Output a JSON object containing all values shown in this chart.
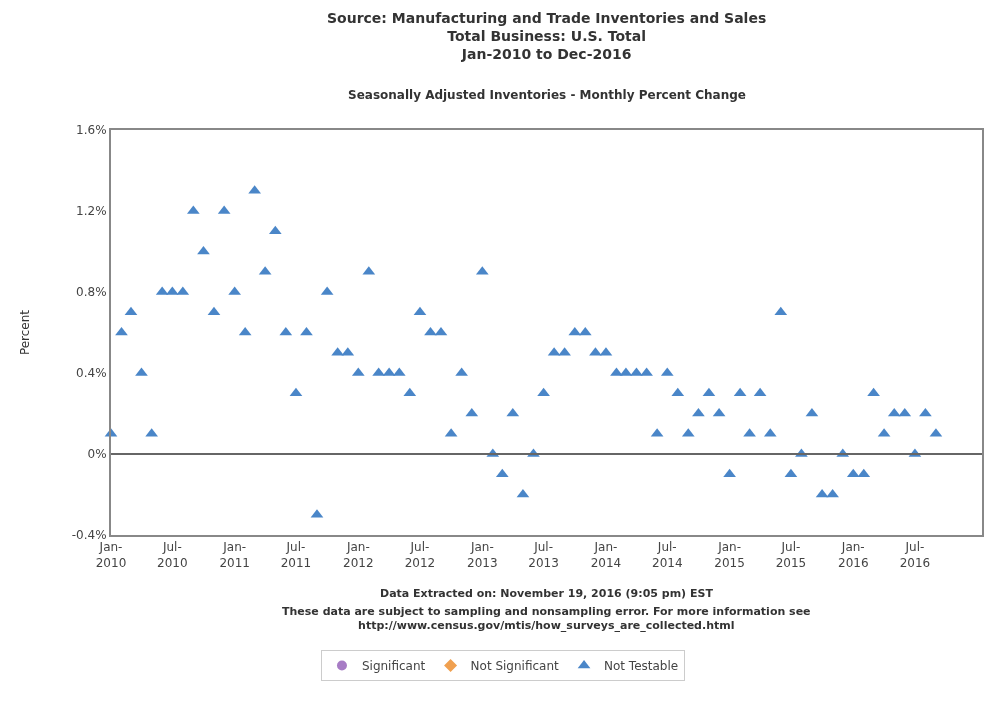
{
  "chart_data": {
    "type": "scatter",
    "title": "Source: Manufacturing and Trade Inventories and Sales\nTotal Business: U.S. Total\nJan-2010 to Dec-2016",
    "subtitle": "Seasonally Adjusted Inventories - Monthly Percent Change",
    "ylabel": "Percent",
    "annotations": [
      "Data Extracted on: November 19, 2016 (9:05 pm) EST",
      "These data are subject to sampling and nonsampling error. For more information see\nhttp://www.census.gov/mtis/how_surveys_are_collected.html"
    ],
    "x": [
      "2010-01",
      "2010-02",
      "2010-03",
      "2010-04",
      "2010-05",
      "2010-06",
      "2010-07",
      "2010-08",
      "2010-09",
      "2010-10",
      "2010-11",
      "2010-12",
      "2011-01",
      "2011-02",
      "2011-03",
      "2011-04",
      "2011-05",
      "2011-06",
      "2011-07",
      "2011-08",
      "2011-09",
      "2011-10",
      "2011-11",
      "2011-12",
      "2012-01",
      "2012-02",
      "2012-03",
      "2012-04",
      "2012-05",
      "2012-06",
      "2012-07",
      "2012-08",
      "2012-09",
      "2012-10",
      "2012-11",
      "2012-12",
      "2013-01",
      "2013-02",
      "2013-03",
      "2013-04",
      "2013-05",
      "2013-06",
      "2013-07",
      "2013-08",
      "2013-09",
      "2013-10",
      "2013-11",
      "2013-12",
      "2014-01",
      "2014-02",
      "2014-03",
      "2014-04",
      "2014-05",
      "2014-06",
      "2014-07",
      "2014-08",
      "2014-09",
      "2014-10",
      "2014-11",
      "2014-12",
      "2015-01",
      "2015-02",
      "2015-03",
      "2015-04",
      "2015-05",
      "2015-06",
      "2015-07",
      "2015-08",
      "2015-09",
      "2015-10",
      "2015-11",
      "2015-12",
      "2016-01",
      "2016-02",
      "2016-03",
      "2016-04",
      "2016-05",
      "2016-06",
      "2016-07",
      "2016-08",
      "2016-09"
    ],
    "series": [
      {
        "name": "Significant",
        "color": "#a77cc5",
        "marker": "circle",
        "values": [
          null,
          null,
          null,
          null,
          null,
          null,
          null,
          null,
          null,
          null,
          null,
          null,
          null,
          null,
          null,
          null,
          null,
          null,
          null,
          null,
          null,
          null,
          null,
          null,
          null,
          null,
          null,
          null,
          null,
          null,
          null,
          null,
          null,
          null,
          null,
          null,
          null,
          null,
          null,
          null,
          null,
          null,
          null,
          null,
          null,
          null,
          null,
          null,
          null,
          null,
          null,
          null,
          null,
          null,
          null,
          null,
          null,
          null,
          null,
          null,
          null,
          null,
          null,
          null,
          null,
          null,
          null,
          null,
          null,
          null,
          null,
          null,
          null,
          null,
          null,
          null,
          null,
          null,
          null,
          null,
          null
        ]
      },
      {
        "name": "Not Significant",
        "color": "#f0a050",
        "marker": "diamond",
        "values": [
          null,
          null,
          null,
          null,
          null,
          null,
          null,
          null,
          null,
          null,
          null,
          null,
          null,
          null,
          null,
          null,
          null,
          null,
          null,
          null,
          null,
          null,
          null,
          null,
          null,
          null,
          null,
          null,
          null,
          null,
          null,
          null,
          null,
          null,
          null,
          null,
          null,
          null,
          null,
          null,
          null,
          null,
          null,
          null,
          null,
          null,
          null,
          null,
          null,
          null,
          null,
          null,
          null,
          null,
          null,
          null,
          null,
          null,
          null,
          null,
          null,
          null,
          null,
          null,
          null,
          null,
          null,
          null,
          null,
          null,
          null,
          null,
          null,
          null,
          null,
          null,
          null,
          null,
          null,
          null,
          null
        ]
      },
      {
        "name": "Not Testable",
        "color": "#4a86c8",
        "marker": "triangle",
        "values": [
          0.1,
          0.6,
          0.7,
          0.4,
          0.1,
          0.8,
          0.8,
          0.8,
          1.2,
          1.0,
          0.7,
          1.2,
          0.8,
          0.6,
          1.3,
          0.9,
          1.1,
          0.6,
          0.3,
          0.6,
          -0.3,
          0.8,
          0.5,
          0.5,
          0.4,
          0.9,
          0.4,
          0.4,
          0.4,
          0.3,
          0.7,
          0.6,
          0.6,
          0.1,
          0.4,
          0.2,
          0.9,
          0.0,
          -0.1,
          0.2,
          -0.2,
          0.0,
          0.3,
          0.5,
          0.5,
          0.6,
          0.6,
          0.5,
          0.5,
          0.4,
          0.4,
          0.4,
          0.4,
          0.1,
          0.4,
          0.3,
          0.1,
          0.2,
          0.3,
          0.2,
          -0.1,
          0.3,
          0.1,
          0.3,
          0.1,
          0.7,
          -0.1,
          0.0,
          0.2,
          -0.2,
          -0.2,
          0.0,
          -0.1,
          -0.1,
          0.3,
          0.1,
          0.2,
          0.2,
          0.0,
          0.2,
          0.1
        ]
      }
    ],
    "xlim": [
      "2010-01",
      "2017-01-15"
    ],
    "xticks": [
      {
        "value": "2010-01",
        "label": "Jan-\n2010"
      },
      {
        "value": "2010-07",
        "label": "Jul-\n2010"
      },
      {
        "value": "2011-01",
        "label": "Jan-\n2011"
      },
      {
        "value": "2011-07",
        "label": "Jul-\n2011"
      },
      {
        "value": "2012-01",
        "label": "Jan-\n2012"
      },
      {
        "value": "2012-07",
        "label": "Jul-\n2012"
      },
      {
        "value": "2013-01",
        "label": "Jan-\n2013"
      },
      {
        "value": "2013-07",
        "label": "Jul-\n2013"
      },
      {
        "value": "2014-01",
        "label": "Jan-\n2014"
      },
      {
        "value": "2014-07",
        "label": "Jul-\n2014"
      },
      {
        "value": "2015-01",
        "label": "Jan-\n2015"
      },
      {
        "value": "2015-07",
        "label": "Jul-\n2015"
      },
      {
        "value": "2016-01",
        "label": "Jan-\n2016"
      },
      {
        "value": "2016-07",
        "label": "Jul-\n2016"
      }
    ],
    "ylim": [
      -0.4,
      1.6
    ],
    "yticks": [
      {
        "value": -0.4,
        "label": "-0.4%"
      },
      {
        "value": 0,
        "label": "0%"
      },
      {
        "value": 0.4,
        "label": "0.4%"
      },
      {
        "value": 0.8,
        "label": "0.8%"
      },
      {
        "value": 1.2,
        "label": "1.2%"
      },
      {
        "value": 1.6,
        "label": "1.6%"
      }
    ],
    "ref_lines": [
      {
        "axis": "y",
        "value": 0,
        "color": "#666666",
        "line_style": "solid"
      }
    ],
    "legend": "bottom"
  }
}
